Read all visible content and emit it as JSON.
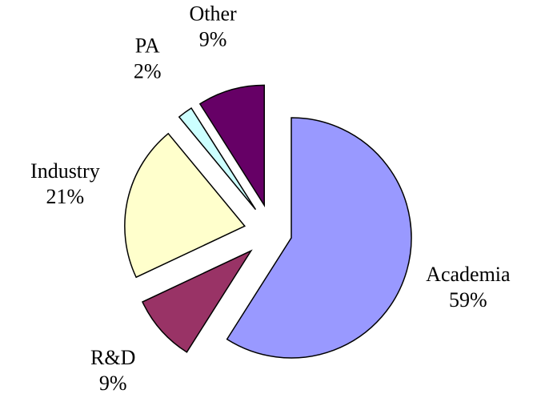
{
  "chart_data": {
    "type": "pie",
    "categories": [
      "Academia",
      "R&D",
      "Industry",
      "PA",
      "Other"
    ],
    "values": [
      59,
      9,
      21,
      2,
      9
    ],
    "value_labels": [
      "59%",
      "9%",
      "21%",
      "2%",
      "9%"
    ],
    "colors": [
      "#9999ff",
      "#993366",
      "#ffffcc",
      "#ccffff",
      "#660066"
    ]
  }
}
